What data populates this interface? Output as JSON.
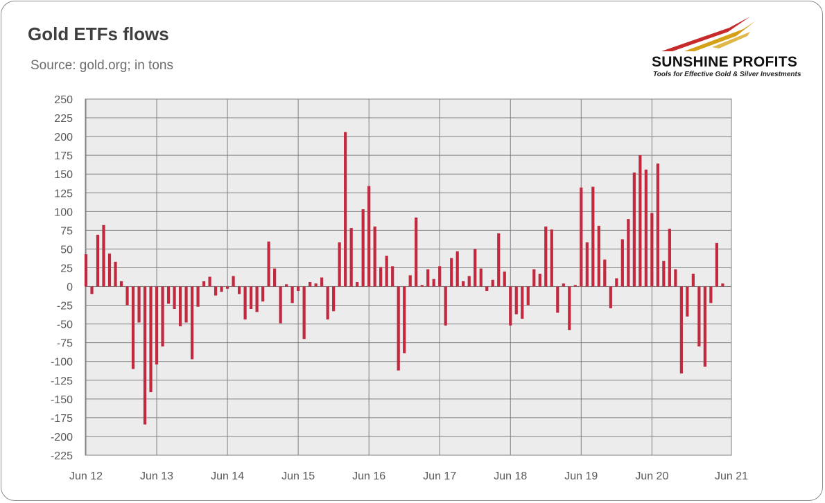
{
  "header": {
    "title": "Gold ETFs flows",
    "subtitle": "Source: gold.org; in tons"
  },
  "logo": {
    "name": "SUNSHINE PROFITS",
    "tagline": "Tools for Effective Gold & Silver Investments"
  },
  "colors": {
    "bar": "#c0293e",
    "plot_bg": "#ececec",
    "grid": "#7f7f7f",
    "text": "#595959"
  },
  "chart_data": {
    "type": "bar",
    "title": "Gold ETFs flows",
    "subtitle": "Source: gold.org; in tons",
    "ylim": [
      -225,
      250
    ],
    "yticks": [
      250,
      225,
      200,
      175,
      150,
      125,
      100,
      75,
      50,
      25,
      0,
      -25,
      -50,
      -75,
      -100,
      -125,
      -150,
      -175,
      -200,
      -225
    ],
    "xticks": [
      "Jun 12",
      "Jun 13",
      "Jun 14",
      "Jun 15",
      "Jun 16",
      "Jun 17",
      "Jun 18",
      "Jun 19",
      "Jun 20",
      "Jun 21"
    ],
    "grid": true,
    "frequency": "monthly, June 2012 to June 2021",
    "values": [
      43,
      -10,
      69,
      82,
      44,
      33,
      7,
      -25,
      -110,
      -48,
      -184,
      -141,
      -104,
      -80,
      -23,
      -30,
      -53,
      -48,
      -97,
      -27,
      7,
      13,
      -12,
      -7,
      -3,
      14,
      -10,
      -44,
      -30,
      -34,
      -20,
      60,
      24,
      -49,
      3,
      -22,
      -6,
      -70,
      6,
      4,
      12,
      -44,
      -33,
      59,
      206,
      78,
      6,
      103,
      134,
      80,
      26,
      41,
      27,
      -112,
      -89,
      15,
      92,
      2,
      23,
      10,
      27,
      -52,
      38,
      47,
      7,
      14,
      50,
      24,
      -6,
      9,
      71,
      20,
      -52,
      -37,
      -43,
      -25,
      23,
      17,
      80,
      76,
      -35,
      4,
      -58,
      2,
      132,
      59,
      133,
      81,
      36,
      -29,
      11,
      63,
      90,
      152,
      175,
      156,
      98,
      164,
      34,
      77,
      23,
      -116,
      -40,
      17,
      -80,
      -107,
      -22,
      58,
      4
    ]
  }
}
